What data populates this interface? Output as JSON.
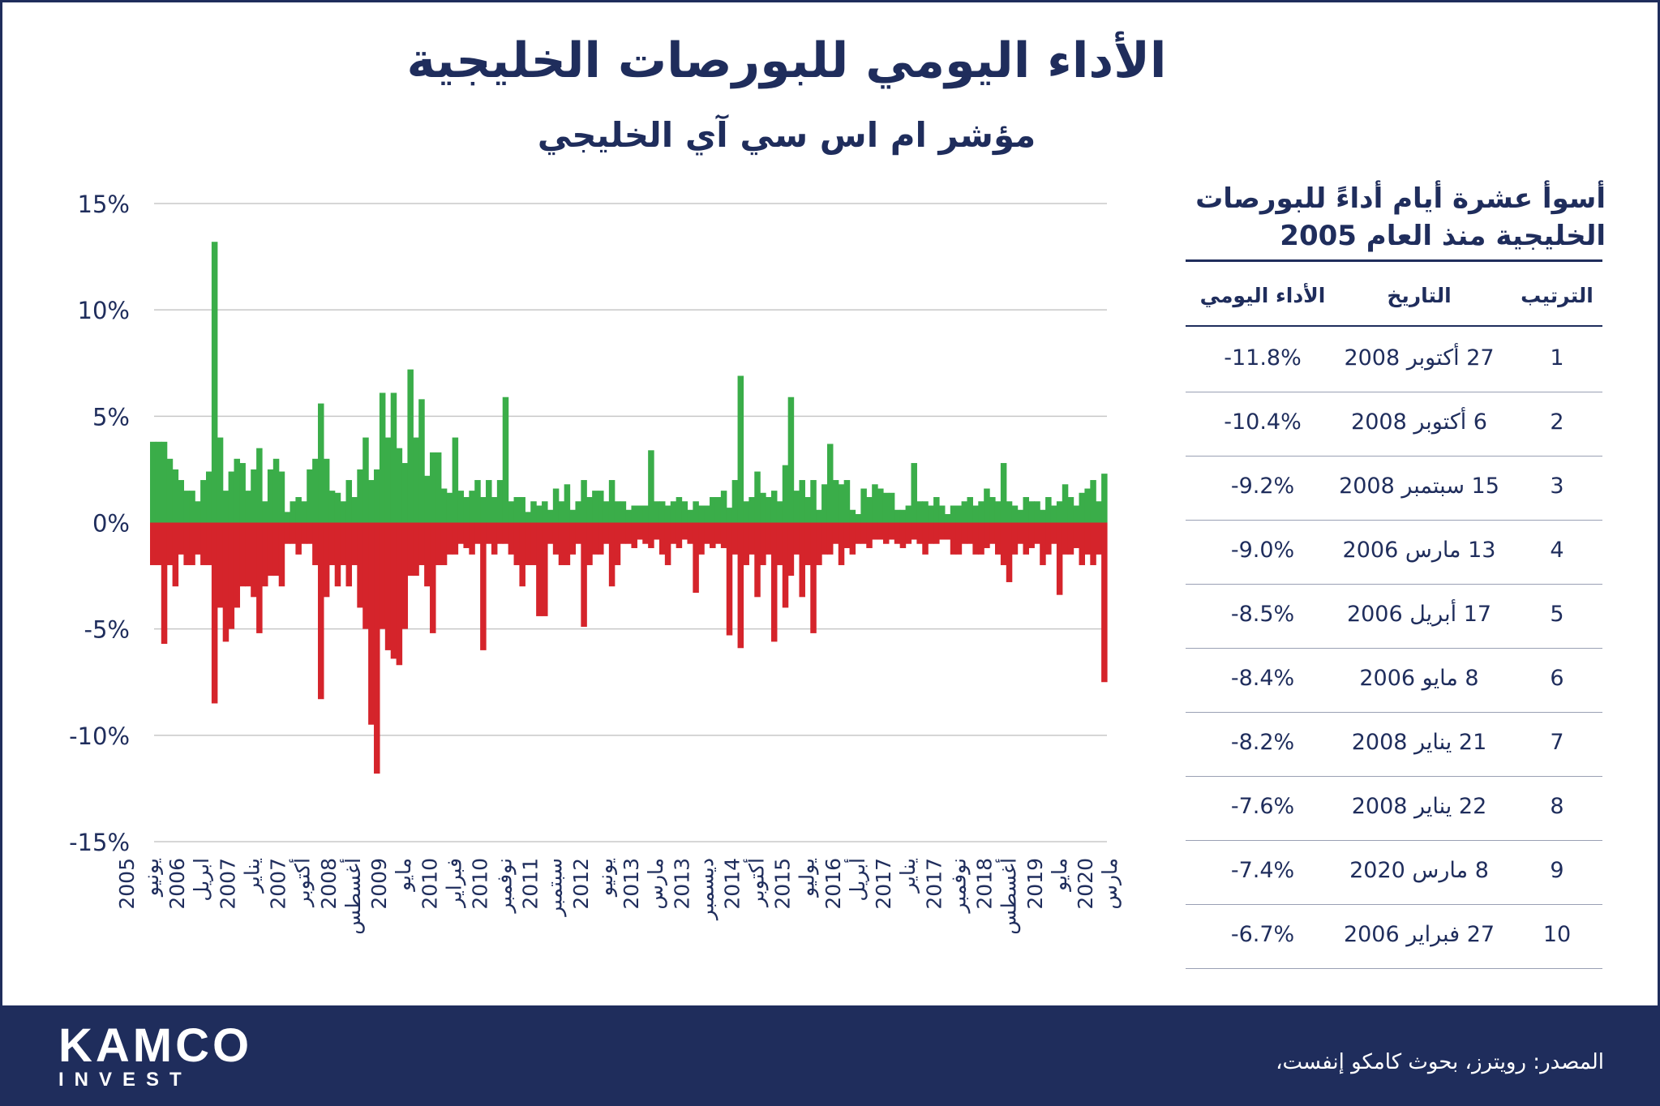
{
  "header": {
    "title": "الأداء اليومي للبورصات الخليجية",
    "subtitle": "مؤشر ام اس سي آي الخليجي"
  },
  "chart_data": {
    "type": "bar",
    "title": "الأداء اليومي للبورصات الخليجية",
    "subtitle": "مؤشر ام اس سي آي الخليجي",
    "xlabel": "",
    "ylabel": "",
    "ylim": [
      -15,
      15
    ],
    "yticks": [
      "15%",
      "10%",
      "5%",
      "0%",
      "-5%",
      "-10%",
      "-15%"
    ],
    "ytick_values": [
      15,
      10,
      5,
      0,
      -5,
      -10,
      -15
    ],
    "grid": true,
    "colors": {
      "positive": "#3aad49",
      "negative": "#d5242b",
      "grid": "#c8c8c8"
    },
    "x_tick_labels": [
      [
        "يونيو",
        "2005"
      ],
      [
        "ابريل",
        "2006"
      ],
      [
        "يناير",
        "2007"
      ],
      [
        "أكتوبر",
        "2007"
      ],
      [
        "أغسطس",
        "2008"
      ],
      [
        "مايو",
        "2009"
      ],
      [
        "فبراير",
        "2010"
      ],
      [
        "نوفمبر",
        "2010"
      ],
      [
        "سبتمبر",
        "2011"
      ],
      [
        "يونيو",
        "2012"
      ],
      [
        "مارس",
        "2013"
      ],
      [
        "ديسمبر",
        "2013"
      ],
      [
        "أكتوبر",
        "2014"
      ],
      [
        "يوليو",
        "2015"
      ],
      [
        "أبريل",
        "2016"
      ],
      [
        "يناير",
        "2017"
      ],
      [
        "نوفمبر",
        "2017"
      ],
      [
        "أغسطس",
        "2018"
      ],
      [
        "مايو",
        "2019"
      ],
      [
        "مارس",
        "2020"
      ]
    ],
    "series": [
      {
        "name": "positive",
        "values": [
          3.8,
          3.8,
          3.8,
          3.0,
          2.5,
          2.0,
          1.5,
          1.5,
          1.0,
          2.0,
          2.4,
          13.2,
          4.0,
          1.5,
          2.4,
          3.0,
          2.8,
          1.5,
          2.5,
          3.5,
          1.0,
          2.5,
          3.0,
          2.4,
          0.5,
          1.0,
          1.2,
          1.0,
          2.5,
          3.0,
          5.6,
          3.0,
          1.5,
          1.4,
          1.0,
          2.0,
          1.2,
          2.5,
          4.0,
          2.0,
          2.5,
          6.1,
          4.0,
          6.1,
          3.5,
          2.8,
          7.2,
          4.0,
          5.8,
          2.2,
          3.3,
          3.3,
          1.6,
          1.4,
          4.0,
          1.5,
          1.2,
          1.5,
          2.0,
          1.2,
          2.0,
          1.2,
          2.0,
          5.9,
          1.0,
          1.2,
          1.2,
          0.5,
          1.0,
          0.8,
          1.0,
          0.6,
          1.6,
          1.0,
          1.8,
          0.6,
          1.0,
          2.0,
          1.2,
          1.5,
          1.5,
          1.0,
          2.0,
          1.0,
          1.0,
          0.6,
          0.8,
          0.8,
          0.8,
          3.4,
          1.0,
          1.0,
          0.8,
          1.0,
          1.2,
          1.0,
          0.6,
          1.0,
          0.8,
          0.8,
          1.2,
          1.2,
          1.5,
          0.7,
          2.0,
          6.9,
          1.0,
          1.2,
          2.4,
          1.4,
          1.2,
          1.5,
          1.0,
          2.7,
          5.9,
          1.5,
          2.0,
          1.2,
          2.0,
          0.6,
          1.8,
          3.7,
          2.0,
          1.8,
          2.0,
          0.6,
          0.4,
          1.6,
          1.2,
          1.8,
          1.6,
          1.4,
          1.4,
          0.6,
          0.6,
          0.8,
          2.8,
          1.0,
          1.0,
          0.8,
          1.2,
          0.8,
          0.4,
          0.8,
          0.8,
          1.0,
          1.2,
          0.8,
          1.0,
          1.6,
          1.2,
          1.0,
          2.8,
          1.0,
          0.8,
          0.6,
          1.2,
          1.0,
          1.0,
          0.6,
          1.2,
          0.8,
          1.0,
          1.8,
          1.2,
          0.8,
          1.4,
          1.6,
          2.0,
          1.0,
          2.3
        ]
      },
      {
        "name": "negative",
        "values": [
          -2.0,
          -2.0,
          -5.7,
          -2.0,
          -3.0,
          -1.5,
          -2.0,
          -2.0,
          -1.5,
          -2.0,
          -2.0,
          -8.5,
          -4.0,
          -5.6,
          -5.0,
          -4.0,
          -3.0,
          -3.0,
          -3.5,
          -5.2,
          -3.0,
          -2.5,
          -2.5,
          -3.0,
          -1.0,
          -1.0,
          -1.5,
          -1.0,
          -1.0,
          -2.0,
          -8.3,
          -3.5,
          -2.0,
          -3.0,
          -2.0,
          -3.0,
          -2.0,
          -4.0,
          -5.0,
          -9.5,
          -11.8,
          -5.0,
          -6.0,
          -6.4,
          -6.7,
          -5.0,
          -2.5,
          -2.5,
          -2.0,
          -3.0,
          -5.2,
          -2.0,
          -2.0,
          -1.5,
          -1.5,
          -1.0,
          -1.2,
          -1.5,
          -1.0,
          -6.0,
          -1.0,
          -1.5,
          -1.0,
          -1.0,
          -1.5,
          -2.0,
          -3.0,
          -2.0,
          -2.0,
          -4.4,
          -4.4,
          -1.0,
          -1.5,
          -2.0,
          -2.0,
          -1.5,
          -1.0,
          -4.9,
          -2.0,
          -1.5,
          -1.5,
          -1.0,
          -3.0,
          -2.0,
          -1.0,
          -1.0,
          -1.2,
          -0.8,
          -1.0,
          -1.2,
          -0.8,
          -1.5,
          -2.0,
          -1.0,
          -1.2,
          -0.8,
          -1.0,
          -3.3,
          -1.5,
          -1.0,
          -1.2,
          -1.0,
          -1.2,
          -5.3,
          -1.5,
          -5.9,
          -2.0,
          -1.5,
          -3.5,
          -2.0,
          -1.5,
          -5.6,
          -2.0,
          -4.0,
          -2.5,
          -1.5,
          -3.5,
          -2.0,
          -5.2,
          -2.0,
          -1.5,
          -1.5,
          -1.0,
          -2.0,
          -1.2,
          -1.5,
          -1.0,
          -1.0,
          -1.2,
          -0.8,
          -0.8,
          -1.0,
          -0.8,
          -1.0,
          -1.2,
          -1.0,
          -0.8,
          -1.0,
          -1.5,
          -1.0,
          -1.0,
          -0.8,
          -0.8,
          -1.5,
          -1.5,
          -1.0,
          -1.0,
          -1.5,
          -1.5,
          -1.2,
          -1.0,
          -1.5,
          -2.0,
          -2.8,
          -1.5,
          -1.0,
          -1.5,
          -1.2,
          -1.0,
          -2.0,
          -1.5,
          -1.0,
          -3.4,
          -1.5,
          -1.5,
          -1.2,
          -2.0,
          -1.5,
          -2.0,
          -1.5,
          -7.5
        ]
      }
    ]
  },
  "table": {
    "title_line1": "أسوأ عشرة أيام أداءً  للبورصات",
    "title_line2": "الخليجية منذ العام 2005",
    "headers": {
      "rank": "الترتيب",
      "date": "التاريخ",
      "performance": "الأداء اليومي"
    },
    "rows": [
      {
        "rank": "1",
        "date": "27 أكتوبر 2008",
        "performance": "-11.8%"
      },
      {
        "rank": "2",
        "date": "6 أكتوبر 2008",
        "performance": "-10.4%"
      },
      {
        "rank": "3",
        "date": "15 سبتمبر 2008",
        "performance": "-9.2%"
      },
      {
        "rank": "4",
        "date": "13 مارس 2006",
        "performance": "-9.0%"
      },
      {
        "rank": "5",
        "date": "17 أبريل 2006",
        "performance": "-8.5%"
      },
      {
        "rank": "6",
        "date": "8 مايو 2006",
        "performance": "-8.4%"
      },
      {
        "rank": "7",
        "date": "21 يناير 2008",
        "performance": "-8.2%"
      },
      {
        "rank": "8",
        "date": "22 يناير 2008",
        "performance": "-7.6%"
      },
      {
        "rank": "9",
        "date": "8 مارس 2020",
        "performance": "-7.4%"
      },
      {
        "rank": "10",
        "date": "27 فبراير 2006",
        "performance": "-6.7%"
      }
    ]
  },
  "footer": {
    "brand": "KAMCO",
    "brand_sub": "INVEST",
    "source": "المصدر: رويترز، بحوث كامكو إنفست،"
  }
}
